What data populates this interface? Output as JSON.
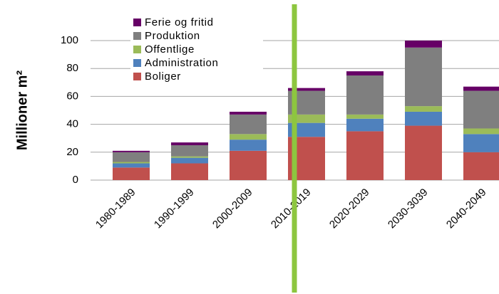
{
  "chart_data": {
    "type": "stacked_bar",
    "y_label": "Millioner m²",
    "categories": [
      "1980-1989",
      "1990-1999",
      "2000-2009",
      "2010-2019",
      "2020-2029",
      "2030-3039",
      "2040-2049"
    ],
    "series": [
      {
        "name": "Boliger",
        "color": "#c0504d",
        "values": [
          9,
          12,
          21,
          31,
          35,
          39,
          20
        ]
      },
      {
        "name": "Administration",
        "color": "#4f81bd",
        "values": [
          3,
          4,
          8,
          10,
          9,
          10,
          13
        ]
      },
      {
        "name": "Offentlige",
        "color": "#9bbb59",
        "values": [
          1,
          1,
          4,
          6,
          3,
          4,
          4
        ]
      },
      {
        "name": "Produktion",
        "color": "#7f7f7f",
        "values": [
          7,
          8,
          14,
          17,
          28,
          42,
          27
        ]
      },
      {
        "name": "Ferie og fritid",
        "color": "#660066",
        "values": [
          1,
          2,
          2,
          2,
          3,
          5,
          3
        ]
      }
    ],
    "ylim": [
      0,
      100
    ],
    "yticks": [
      0,
      20,
      40,
      60,
      80,
      100
    ],
    "grid": true,
    "legend": "top-left"
  }
}
